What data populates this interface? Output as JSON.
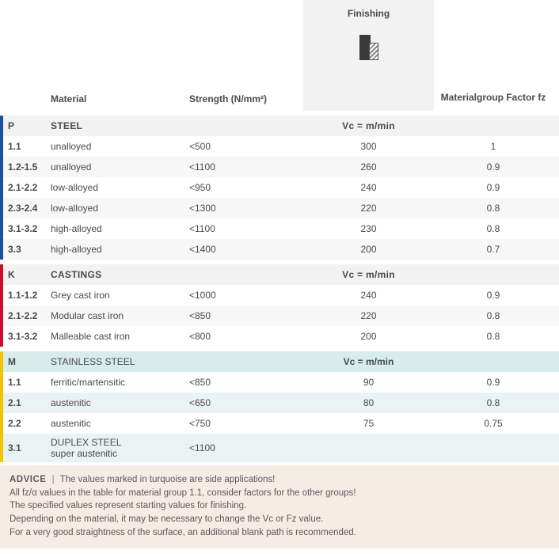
{
  "header": {
    "material": "Material",
    "strength": "Strength (N/mm²)",
    "finishing": "Finishing",
    "fz": "Materialgroup Factor fz"
  },
  "groups": [
    {
      "code": "P",
      "name": "STEEL",
      "color": "#1f4fa0",
      "vc_label": "Vc = m/min",
      "head_bg": "grp-head",
      "stripe": "stripe",
      "rows": [
        {
          "code": "1.1",
          "mat": "unalloyed",
          "str": "<500",
          "fin": "300",
          "fz": "1"
        },
        {
          "code": "1.2-1.5",
          "mat": "unalloyed",
          "str": "<1100",
          "fin": "260",
          "fz": "0.9"
        },
        {
          "code": "2.1-2.2",
          "mat": "low-alloyed",
          "str": "<950",
          "fin": "240",
          "fz": "0.9"
        },
        {
          "code": "2.3-2.4",
          "mat": "low-alloyed",
          "str": "<1300",
          "fin": "220",
          "fz": "0.8"
        },
        {
          "code": "3.1-3.2",
          "mat": "high-alloyed",
          "str": "<1100",
          "fin": "230",
          "fz": "0.8"
        },
        {
          "code": "3.3",
          "mat": "high-alloyed",
          "str": "<1400",
          "fin": "200",
          "fz": "0.7"
        }
      ]
    },
    {
      "code": "K",
      "name": "CASTINGS",
      "color": "#c8102e",
      "vc_label": "Vc = m/min",
      "head_bg": "grp-head",
      "stripe": "stripe",
      "rows": [
        {
          "code": "1.1-1.2",
          "mat": "Grey cast iron",
          "str": "<1000",
          "fin": "240",
          "fz": "0.9"
        },
        {
          "code": "2.1-2.2",
          "mat": "Modular cast iron",
          "str": "<850",
          "fin": "220",
          "fz": "0.8"
        },
        {
          "code": "3.1-3.2",
          "mat": "Malleable cast iron",
          "str": "<800",
          "fin": "200",
          "fz": "0.8"
        }
      ]
    },
    {
      "code": "M",
      "name": "STAINLESS STEEL",
      "color": "#f2c300",
      "vc_label": "Vc = m/min",
      "head_bg": "grp-head-m",
      "stripe": "stripe-m",
      "rows": [
        {
          "code": "1.1",
          "mat": "ferritic/martensitic",
          "str": "<850",
          "fin": "90",
          "fz": "0.9"
        },
        {
          "code": "2.1",
          "mat": "austenitic",
          "str": "<650",
          "fin": "80",
          "fz": "0.8"
        },
        {
          "code": "2.2",
          "mat": "austenitic",
          "str": "<750",
          "fin": "75",
          "fz": "0.75"
        },
        {
          "code": "3.1",
          "mat": "DUPLEX STEEL | super austenitic",
          "mat_multi": true,
          "str": "<1100",
          "fin": "",
          "fz": ""
        }
      ]
    }
  ],
  "advice": {
    "lead": "ADVICE",
    "lines": [
      "The values marked in turquoise are side applications!",
      "All fz/α values in the table for material group 1.1, consider factors for the other groups!",
      "The specified values represent starting values for finishing.",
      "Depending on the material, it may be necessary to change the Vc or Fz value.",
      "For a very good straightness of the surface, an additional blank path is recommended."
    ]
  }
}
